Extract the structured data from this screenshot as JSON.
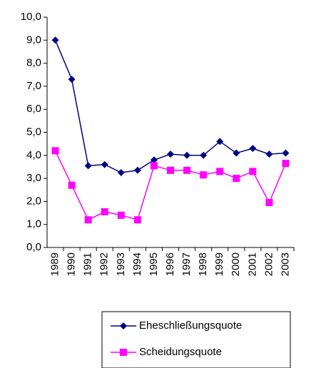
{
  "chart_data": {
    "type": "line",
    "categories": [
      "1989",
      "1990",
      "1991",
      "1992",
      "1993",
      "1994",
      "1995",
      "1996",
      "1997",
      "1998",
      "1999",
      "2000",
      "2001",
      "2002",
      "2003"
    ],
    "series": [
      {
        "name": "Eheschließungsquote",
        "color": "#000080",
        "marker": "diamond",
        "values": [
          9.0,
          7.3,
          3.55,
          3.6,
          3.25,
          3.35,
          3.8,
          4.05,
          4.0,
          4.0,
          4.6,
          4.1,
          4.3,
          4.05,
          4.1
        ]
      },
      {
        "name": "Scheidungsquote",
        "color": "#ff00ff",
        "marker": "square",
        "values": [
          4.2,
          2.7,
          1.2,
          1.55,
          1.4,
          1.2,
          3.55,
          3.35,
          3.35,
          3.15,
          3.3,
          3.0,
          3.3,
          1.95,
          3.65
        ]
      }
    ],
    "ylim": [
      0,
      10
    ],
    "yticks": [
      {
        "value": 0,
        "label": "0,0"
      },
      {
        "value": 1,
        "label": "1,0"
      },
      {
        "value": 2,
        "label": "2,0"
      },
      {
        "value": 3,
        "label": "3,0"
      },
      {
        "value": 4,
        "label": "4,0"
      },
      {
        "value": 5,
        "label": "5,0"
      },
      {
        "value": 6,
        "label": "6,0"
      },
      {
        "value": 7,
        "label": "7,0"
      },
      {
        "value": 8,
        "label": "8,0"
      },
      {
        "value": 9,
        "label": "9,0"
      },
      {
        "value": 10,
        "label": "10,0"
      }
    ],
    "grid": false,
    "legend": "bottom"
  }
}
